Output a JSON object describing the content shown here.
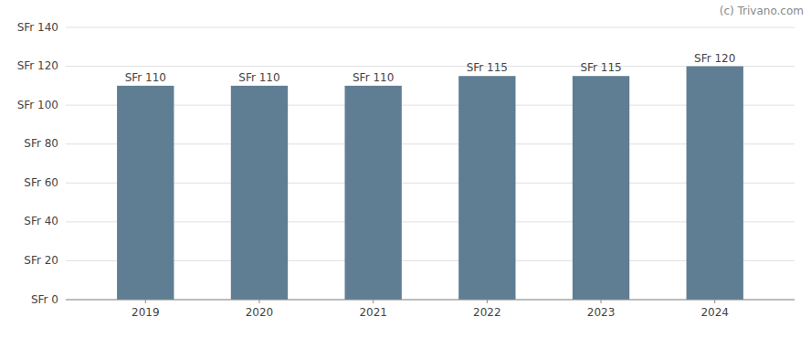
{
  "chart_data": {
    "type": "bar",
    "categories": [
      "2019",
      "2020",
      "2021",
      "2022",
      "2023",
      "2024"
    ],
    "values": [
      110,
      110,
      110,
      115,
      115,
      120
    ],
    "value_labels": [
      "SFr 110",
      "SFr 110",
      "SFr 110",
      "SFr 115",
      "SFr 115",
      "SFr 120"
    ],
    "data_labels": true,
    "color": "#5f7e93",
    "ylim": [
      0,
      140
    ],
    "yticks": [
      {
        "value": 0,
        "label": "SFr 0"
      },
      {
        "value": 20,
        "label": "SFr 20"
      },
      {
        "value": 40,
        "label": "SFr 40"
      },
      {
        "value": 60,
        "label": "SFr 60"
      },
      {
        "value": 80,
        "label": "SFr 80"
      },
      {
        "value": 100,
        "label": "SFr 100"
      },
      {
        "value": 120,
        "label": "SFr 120"
      },
      {
        "value": 140,
        "label": "SFr 140"
      }
    ],
    "grid": true,
    "annotations": [
      "(c) Trivano.com"
    ]
  }
}
